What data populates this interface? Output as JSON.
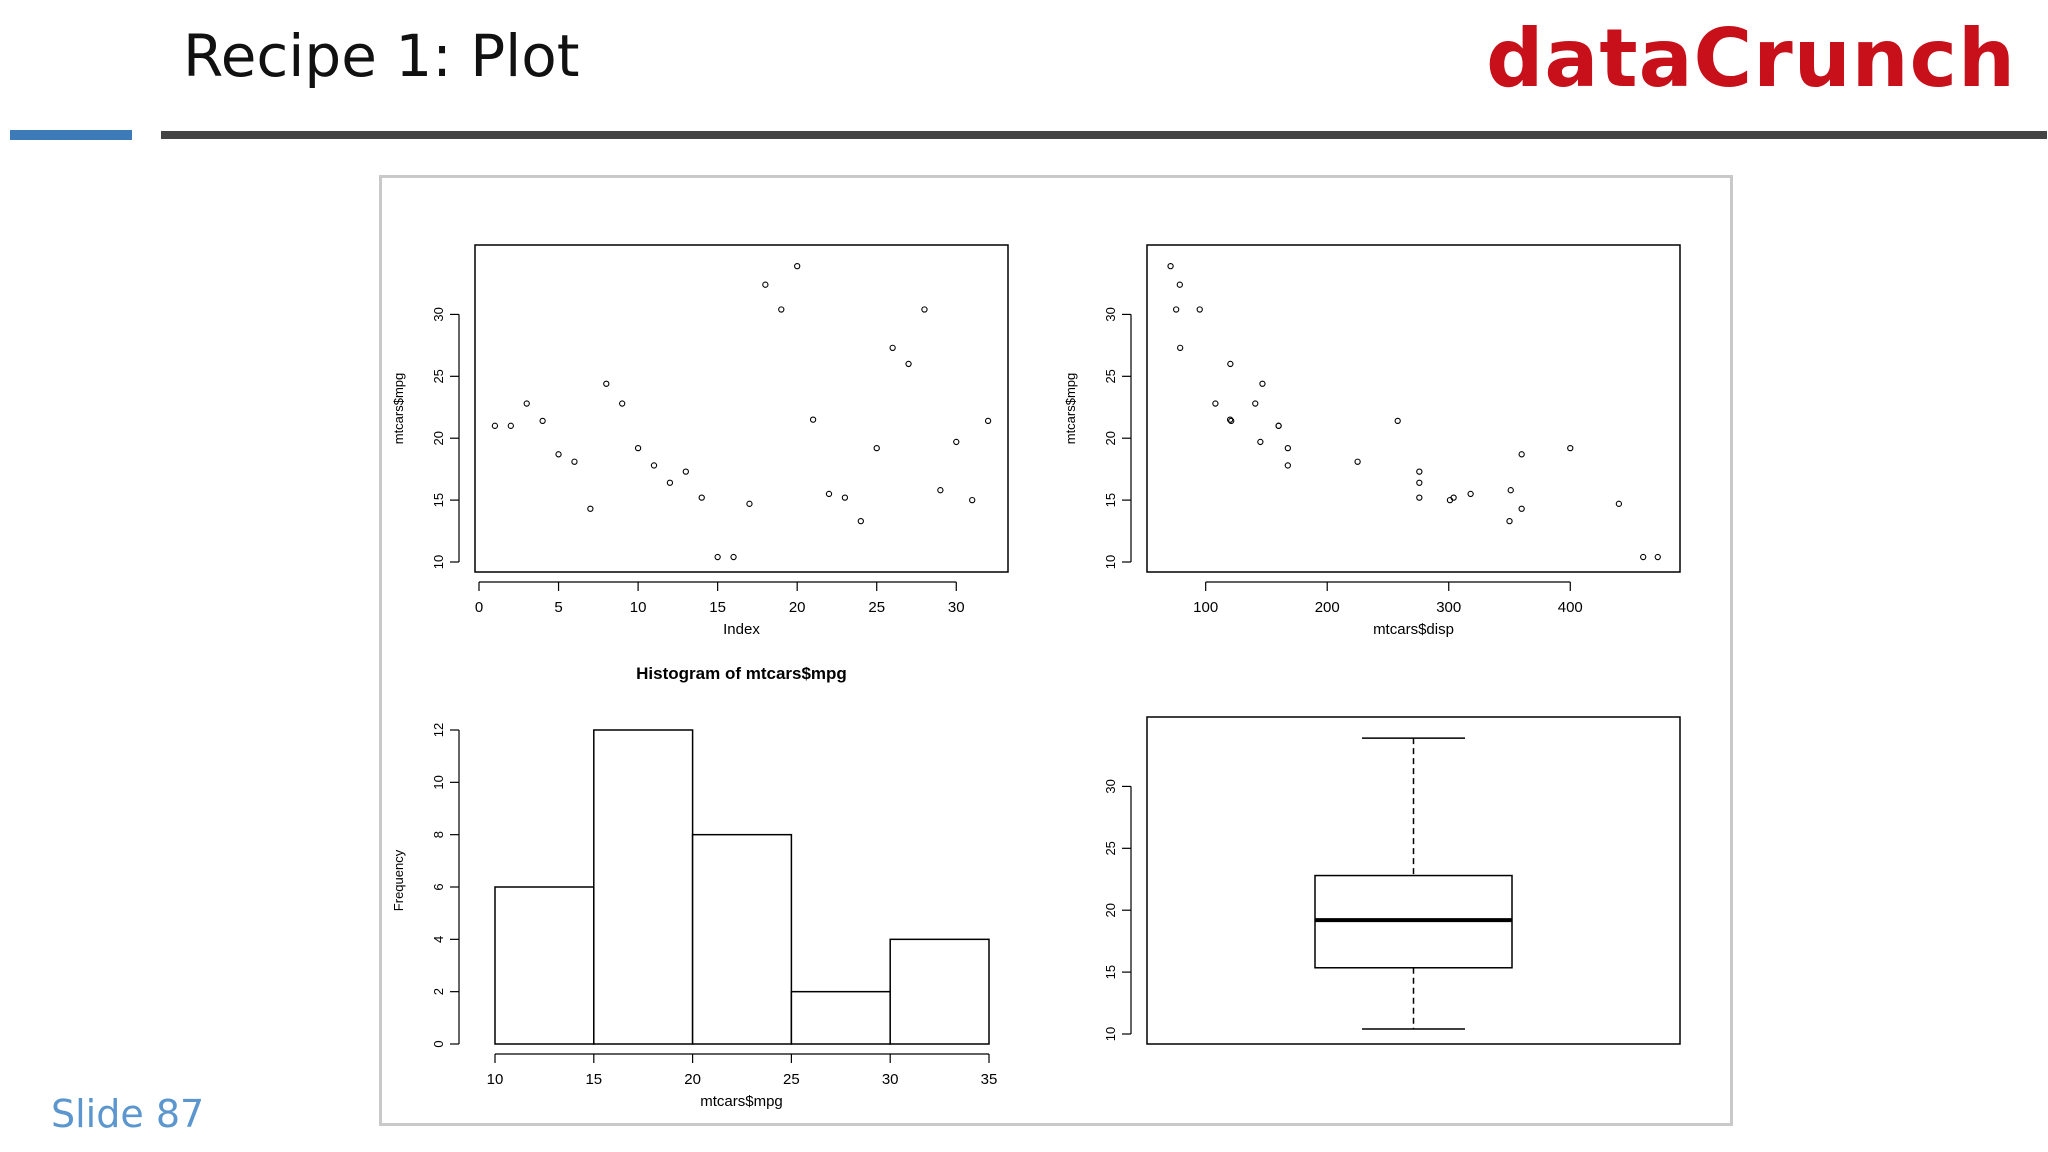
{
  "slide": {
    "title": "Recipe 1: Plot",
    "brand": "dataCrunch",
    "number_label": "Slide 87",
    "brand_color": "#c8101a",
    "accent_color": "#3d7ab8"
  },
  "chart_data": [
    {
      "type": "scatter",
      "title": "",
      "xlabel": "Index",
      "ylabel": "mtcars$mpg",
      "xlim": [
        0,
        33
      ],
      "ylim": [
        10,
        34.8
      ],
      "xticks": [
        0,
        5,
        10,
        15,
        20,
        25,
        30
      ],
      "yticks": [
        10,
        15,
        20,
        25,
        30
      ],
      "x": [
        1,
        2,
        3,
        4,
        5,
        6,
        7,
        8,
        9,
        10,
        11,
        12,
        13,
        14,
        15,
        16,
        17,
        18,
        19,
        20,
        21,
        22,
        23,
        24,
        25,
        26,
        27,
        28,
        29,
        30,
        31,
        32
      ],
      "y": [
        21.0,
        21.0,
        22.8,
        21.4,
        18.7,
        18.1,
        14.3,
        24.4,
        22.8,
        19.2,
        17.8,
        16.4,
        17.3,
        15.2,
        10.4,
        10.4,
        14.7,
        32.4,
        30.4,
        33.9,
        21.5,
        15.5,
        15.2,
        13.3,
        19.2,
        27.3,
        26.0,
        30.4,
        15.8,
        19.7,
        15.0,
        21.4
      ]
    },
    {
      "type": "scatter",
      "title": "",
      "xlabel": "mtcars$disp",
      "ylabel": "mtcars$mpg",
      "xlim": [
        55,
        487
      ],
      "ylim": [
        10,
        34.8
      ],
      "xticks": [
        100,
        200,
        300,
        400
      ],
      "yticks": [
        10,
        15,
        20,
        25,
        30
      ],
      "x": [
        160,
        160,
        108,
        258,
        360,
        225,
        360,
        146.7,
        140.8,
        167.6,
        167.6,
        275.8,
        275.8,
        275.8,
        472,
        460,
        440,
        78.7,
        75.7,
        71.1,
        120.1,
        318,
        304,
        350,
        400,
        79,
        120.3,
        95.1,
        351,
        145,
        301,
        121
      ],
      "y": [
        21.0,
        21.0,
        22.8,
        21.4,
        18.7,
        18.1,
        14.3,
        24.4,
        22.8,
        19.2,
        17.8,
        16.4,
        17.3,
        15.2,
        10.4,
        10.4,
        14.7,
        32.4,
        30.4,
        33.9,
        21.5,
        15.5,
        15.2,
        13.3,
        19.2,
        27.3,
        26.0,
        30.4,
        15.8,
        19.7,
        15.0,
        21.4
      ]
    },
    {
      "type": "bar",
      "title": "Histogram of mtcars$mpg",
      "xlabel": "mtcars$mpg",
      "ylabel": "Frequency",
      "bins": [
        [
          10,
          15
        ],
        [
          15,
          20
        ],
        [
          20,
          25
        ],
        [
          25,
          30
        ],
        [
          30,
          35
        ]
      ],
      "values": [
        6,
        12,
        8,
        2,
        4
      ],
      "xticks": [
        10,
        15,
        20,
        25,
        30,
        35
      ],
      "yticks": [
        0,
        2,
        4,
        6,
        8,
        10,
        12
      ],
      "ylim": [
        0,
        12
      ]
    },
    {
      "type": "box",
      "title": "",
      "ylim": [
        10,
        34.8
      ],
      "yticks": [
        10,
        15,
        20,
        25,
        30
      ],
      "min": 10.4,
      "q1": 15.35,
      "median": 19.2,
      "q3": 22.8,
      "max": 33.9
    }
  ]
}
